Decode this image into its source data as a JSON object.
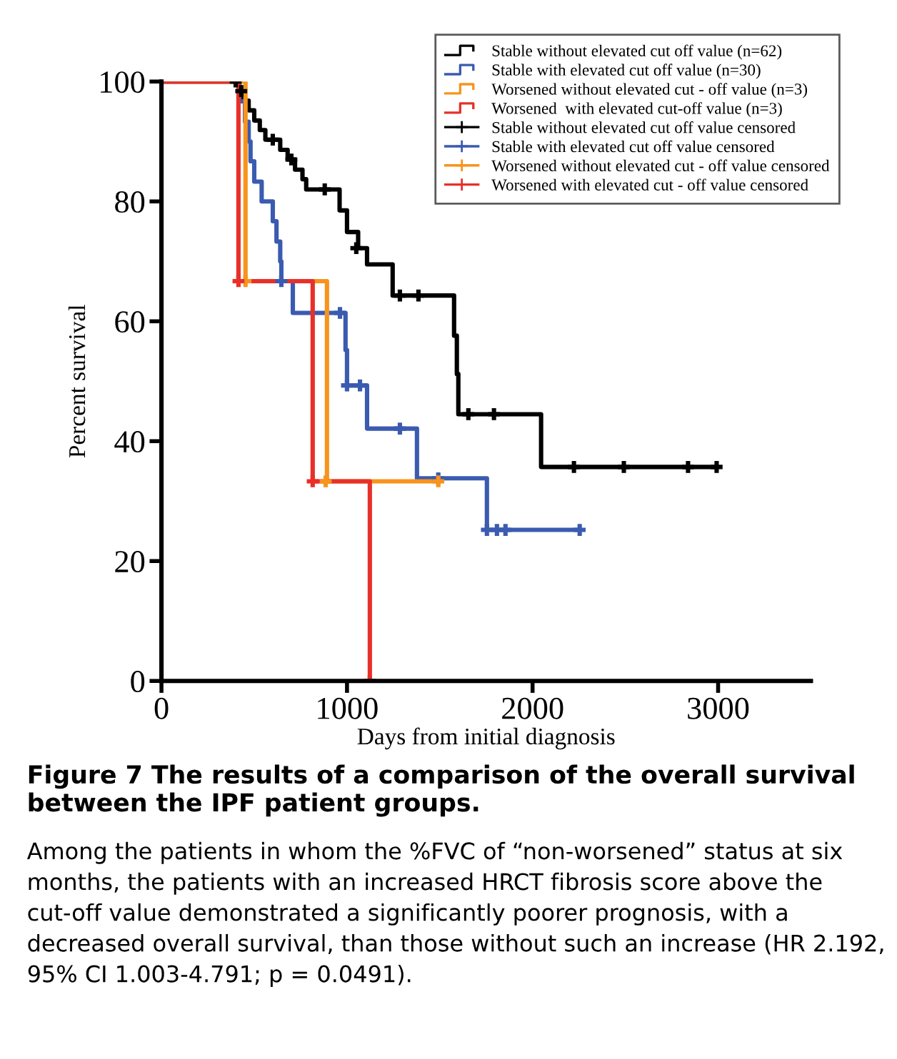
{
  "chart_data": {
    "type": "step",
    "xlabel": "Days from initial diagnosis",
    "ylabel": "Percent survival",
    "xlim": [
      0,
      3500
    ],
    "ylim": [
      0,
      100
    ],
    "xticks": [
      0,
      1000,
      2000,
      3000
    ],
    "yticks": [
      0,
      20,
      40,
      60,
      80,
      100
    ],
    "legend": "top right",
    "grid": false,
    "line_style": "solid",
    "series": [
      {
        "name": "Stable without elevated cut off value (n=62)",
        "color": "#000000",
        "x": [
          0,
          420,
          440,
          470,
          500,
          530,
          560,
          640,
          680,
          720,
          760,
          780,
          960,
          1000,
          1060,
          1108,
          1246,
          1577,
          1592,
          1600,
          2046,
          2992
        ],
        "values": [
          100,
          98.4,
          96.8,
          95.2,
          93.5,
          91.9,
          90.3,
          88.6,
          87.0,
          85.3,
          83.7,
          82.0,
          78.5,
          74.9,
          72.2,
          69.5,
          64.3,
          57.6,
          51.2,
          44.5,
          35.7,
          35.7
        ]
      },
      {
        "name": "Stable with elevated cut off value (n=30)",
        "color": "#3a5bb0",
        "x": [
          0,
          420,
          450,
          470,
          480,
          500,
          540,
          600,
          620,
          640,
          646,
          708,
          992,
          1000,
          1108,
          1377,
          1754,
          2254
        ],
        "values": [
          100,
          96.7,
          93.3,
          90,
          86.7,
          83.3,
          80,
          76.7,
          73.3,
          70,
          66.7,
          61.4,
          55.2,
          49.3,
          42.1,
          33.8,
          25.2,
          25.2
        ]
      },
      {
        "name": "Worsened without elevated cut - off value (n=3)",
        "color": "#f7941d",
        "x": [
          0,
          453,
          892,
          1492
        ],
        "values": [
          100,
          66.7,
          33.3,
          33.3
        ]
      },
      {
        "name": "Worsened  with elevated cut-off value (n=3)",
        "color": "#e8302a",
        "x": [
          0,
          415,
          815,
          1123
        ],
        "values": [
          100,
          66.7,
          33.3,
          0
        ]
      },
      {
        "name": "Stable without elevated cut off value censored",
        "type": "scatter",
        "marker": "cross",
        "color": "#000000",
        "x": [
          400,
          430,
          600,
          700,
          880,
          1050,
          1285,
          1385,
          1654,
          1792,
          2223,
          2492,
          2838,
          2992
        ],
        "values": [
          100,
          98.4,
          90.3,
          87.0,
          82.0,
          72.2,
          64.3,
          64.3,
          44.5,
          44.5,
          35.7,
          35.7,
          35.7,
          35.7
        ]
      },
      {
        "name": "Stable with elevated cut off value censored",
        "type": "scatter",
        "marker": "cross",
        "color": "#3a5bb0",
        "x": [
          646,
          962,
          1000,
          1070,
          1285,
          1492,
          1754,
          1808,
          1854,
          2254
        ],
        "values": [
          66.7,
          61.4,
          49.3,
          49.3,
          42.1,
          33.8,
          25.2,
          25.2,
          25.2,
          25.2
        ]
      },
      {
        "name": "Worsened without elevated cut - off value censored",
        "type": "scatter",
        "marker": "cross",
        "color": "#f7941d",
        "x": [
          453,
          885,
          1492
        ],
        "values": [
          66.7,
          33.3,
          33.3
        ]
      },
      {
        "name": "Worsened with elevated cut - off value censored",
        "type": "scatter",
        "marker": "cross",
        "color": "#e8302a",
        "x": [
          415,
          815,
          1123
        ],
        "values": [
          66.7,
          33.3,
          0
        ]
      }
    ],
    "annotations": [
      "Figure 7 The results of a comparison of the overall survival between the IPF patient groups.",
      "Among the patients in whom the %FVC of “non-worsened” status at six months, the patients with an increased HRCT fibrosis score above the cut-off value demonstrated a significantly poorer prognosis, with a decreased overall survival, than those without such an increase (HR 2.192, 95% CI 1.003-4.791; p = 0.0491)."
    ]
  }
}
